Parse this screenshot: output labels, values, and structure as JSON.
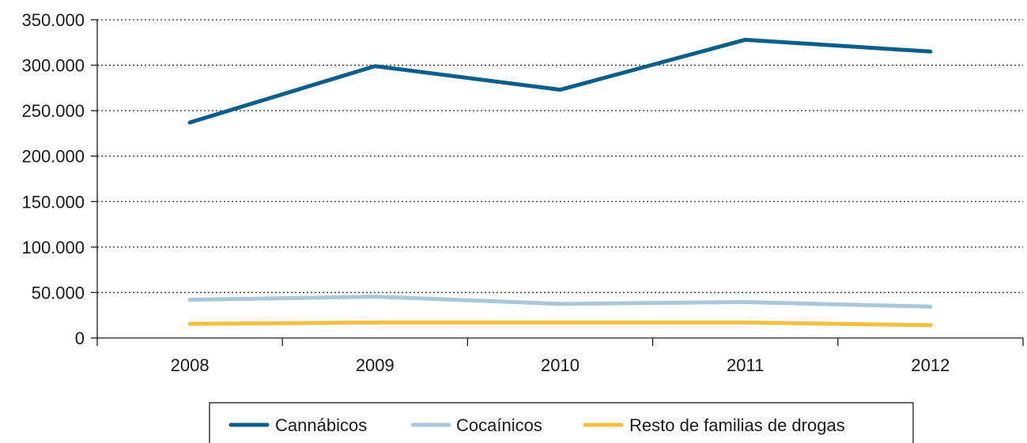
{
  "chart_data": {
    "type": "line",
    "categories": [
      "2008",
      "2009",
      "2010",
      "2011",
      "2012"
    ],
    "series": [
      {
        "name": "Cannábicos",
        "values": [
          237000,
          299000,
          273000,
          328000,
          315000
        ],
        "color": "#0a5f8a"
      },
      {
        "name": "Cocaínicos",
        "values": [
          42000,
          45500,
          37500,
          39500,
          34500
        ],
        "color": "#a9c8da"
      },
      {
        "name": "Resto de familias de drogas",
        "values": [
          15500,
          17000,
          17000,
          17000,
          14000
        ],
        "color": "#f5c041"
      }
    ],
    "ylim": [
      0,
      350000
    ],
    "yticks": [
      0,
      50000,
      100000,
      150000,
      200000,
      250000,
      300000,
      350000
    ],
    "ytick_labels": [
      "0",
      "50.000",
      "100.000",
      "150.000",
      "200.000",
      "250.000",
      "300.000",
      "350.000"
    ],
    "grid": "horizontal-dotted",
    "legend": "bottom"
  }
}
